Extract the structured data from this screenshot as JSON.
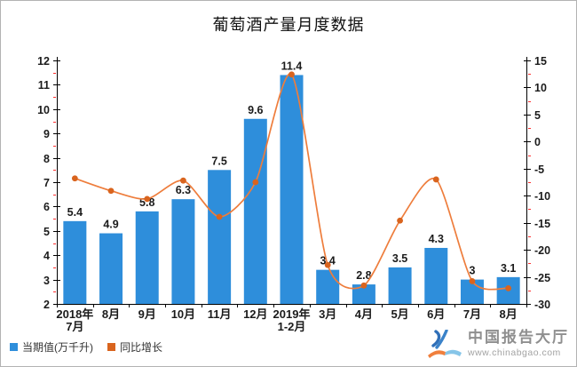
{
  "chart_data": {
    "type": "combo",
    "title": "葡萄酒产量月度数据",
    "categories": [
      "2018年\n7月",
      "8月",
      "9月",
      "10月",
      "11月",
      "12月",
      "2019年\n1-2月",
      "3月",
      "4月",
      "5月",
      "6月",
      "7月",
      "8月"
    ],
    "series": [
      {
        "name": "当期值(万千升)",
        "type": "bar",
        "axis": "left",
        "color": "#2e8edb",
        "values": [
          5.4,
          4.9,
          5.8,
          6.3,
          7.5,
          9.6,
          11.4,
          3.4,
          2.8,
          3.5,
          4.3,
          3,
          3.1
        ]
      },
      {
        "name": "同比增长",
        "type": "line",
        "axis": "right",
        "color": "#ee7d3c",
        "marker_color": "#d9641e",
        "values": [
          -6.8,
          -9.1,
          -10.6,
          -7.2,
          -13.9,
          -7.5,
          12.4,
          -22.8,
          -26.6,
          -14.6,
          -7.0,
          -25.8,
          -27.1
        ]
      }
    ],
    "axes": {
      "left": {
        "min": 2,
        "max": 12,
        "step": 1,
        "minor_step": 0.5
      },
      "right": {
        "min": -30,
        "max": 15,
        "step": 5,
        "minor_step": 2.5
      }
    },
    "grid": false,
    "legend_position": "bottom-left",
    "colors": {
      "axis": "#000000",
      "minor_tick": "#ff2d2d",
      "label_text": "#1b1b1b"
    }
  },
  "watermark": {
    "logo_icon": "chinabgao-logo-icon",
    "name": "中国报告大厅",
    "url": "www.chinabgao.com"
  }
}
